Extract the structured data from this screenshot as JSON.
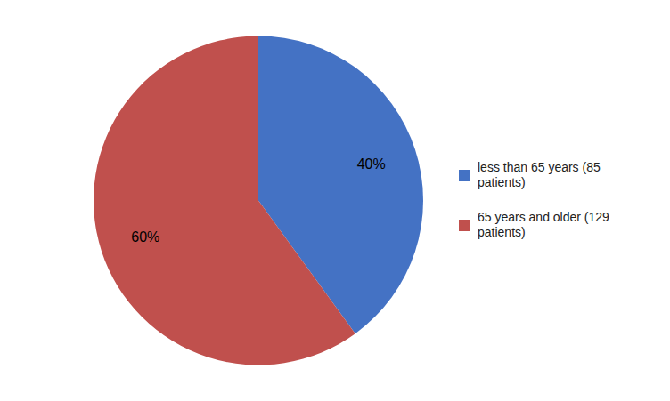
{
  "chart_data": {
    "type": "pie",
    "categories": [
      "less than 65 years (85\npatients)",
      "65 years and older (129\npatients)"
    ],
    "values": [
      40,
      60
    ],
    "value_labels": [
      "40%",
      "60%"
    ],
    "colors": [
      "#4472C4",
      "#C0504D"
    ],
    "data_labels": true,
    "legend": "right"
  }
}
